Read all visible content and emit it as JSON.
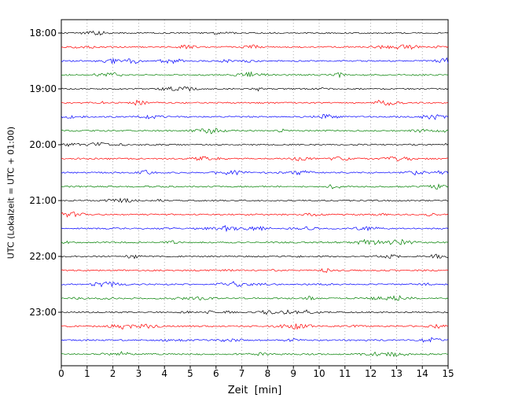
{
  "chart_data": {
    "type": "line",
    "subtype": "helicorder-seismogram",
    "title": "",
    "xlabel": "Zeit  [min]",
    "ylabel": "UTC (Lokalzeit = UTC + 01:00)",
    "xlim": [
      0,
      15
    ],
    "minutes_per_line": 15,
    "x_tick_labels": [
      "0",
      "1",
      "2",
      "3",
      "4",
      "5",
      "6",
      "7",
      "8",
      "9",
      "10",
      "11",
      "12",
      "13",
      "14",
      "15"
    ],
    "y_tick_labels": [
      "18:00",
      "19:00",
      "20:00",
      "21:00",
      "22:00",
      "23:00"
    ],
    "grid": "vertical dotted lines at every minute",
    "legend": "none",
    "trace_color_cycle": [
      "#000000",
      "#ff0000",
      "#0000ff",
      "#008000"
    ],
    "signal": "continuous low-amplitude background noise with sporadic small bursts",
    "traces": [
      {
        "start": "18:00",
        "color": "#000000"
      },
      {
        "start": "18:15",
        "color": "#ff0000"
      },
      {
        "start": "18:30",
        "color": "#0000ff"
      },
      {
        "start": "18:45",
        "color": "#008000"
      },
      {
        "start": "19:00",
        "color": "#000000"
      },
      {
        "start": "19:15",
        "color": "#ff0000"
      },
      {
        "start": "19:30",
        "color": "#0000ff"
      },
      {
        "start": "19:45",
        "color": "#008000"
      },
      {
        "start": "20:00",
        "color": "#000000"
      },
      {
        "start": "20:15",
        "color": "#ff0000"
      },
      {
        "start": "20:30",
        "color": "#0000ff"
      },
      {
        "start": "20:45",
        "color": "#008000"
      },
      {
        "start": "21:00",
        "color": "#000000"
      },
      {
        "start": "21:15",
        "color": "#ff0000"
      },
      {
        "start": "21:30",
        "color": "#0000ff"
      },
      {
        "start": "21:45",
        "color": "#008000"
      },
      {
        "start": "22:00",
        "color": "#000000"
      },
      {
        "start": "22:15",
        "color": "#ff0000"
      },
      {
        "start": "22:30",
        "color": "#0000ff"
      },
      {
        "start": "22:45",
        "color": "#008000"
      },
      {
        "start": "23:00",
        "color": "#000000"
      },
      {
        "start": "23:15",
        "color": "#ff0000"
      },
      {
        "start": "23:30",
        "color": "#0000ff"
      },
      {
        "start": "23:45",
        "color": "#008000"
      }
    ]
  }
}
